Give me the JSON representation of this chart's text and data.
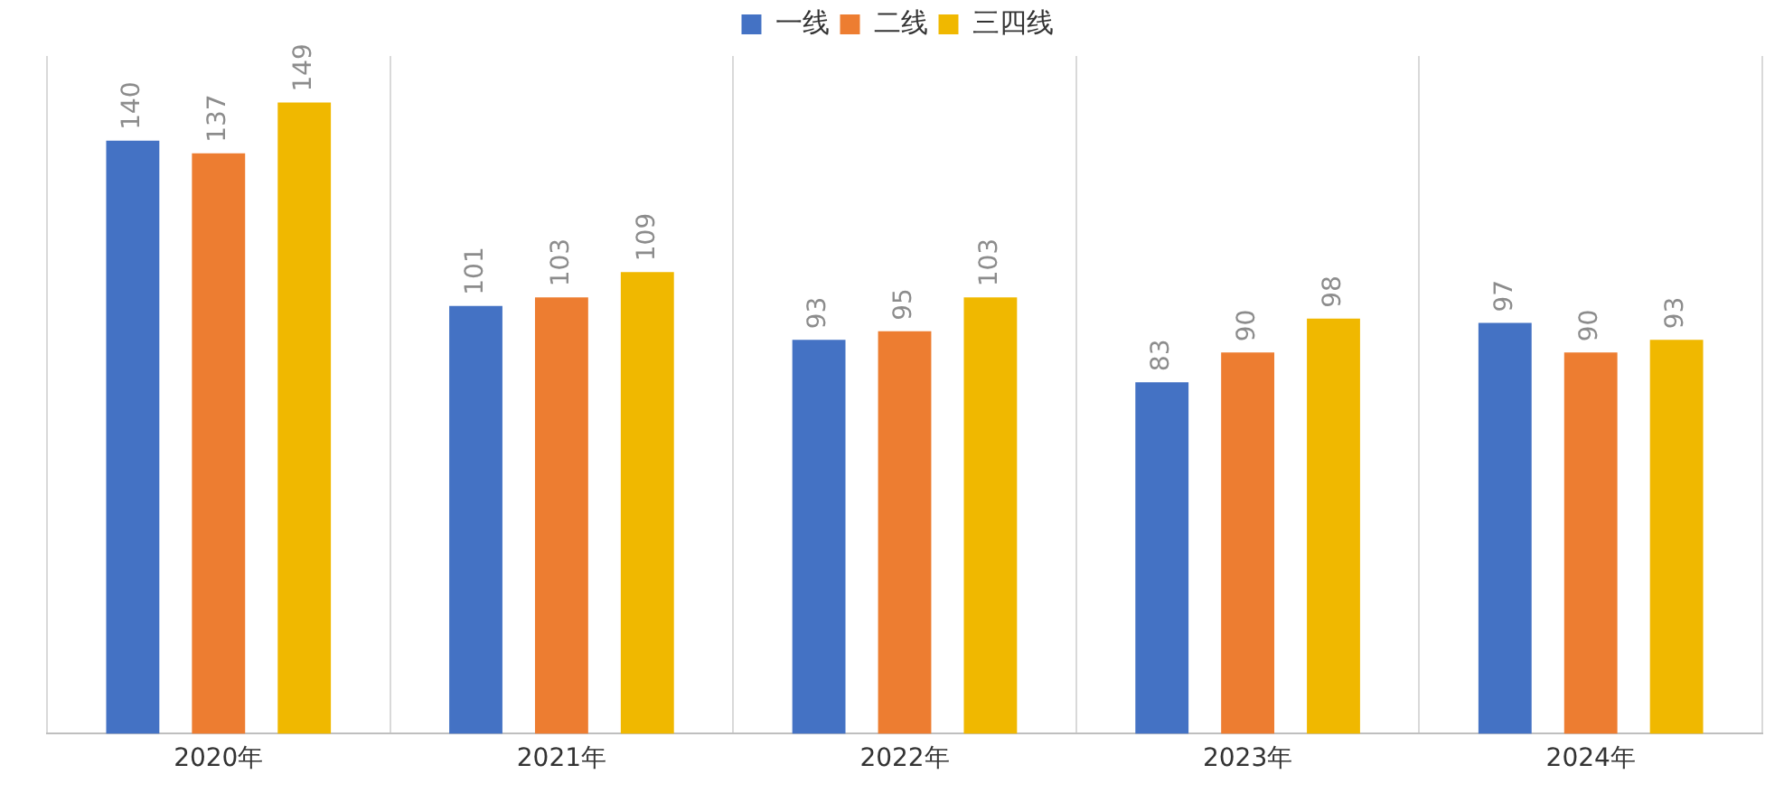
{
  "chart_data": {
    "type": "bar",
    "categories": [
      "2020年",
      "2021年",
      "2022年",
      "2023年",
      "2024年"
    ],
    "series": [
      {
        "name": "一线",
        "color": "#4472c4",
        "values": [
          140,
          101,
          93,
          83,
          97
        ]
      },
      {
        "name": "二线",
        "color": "#ed7d31",
        "values": [
          137,
          103,
          95,
          90,
          90
        ]
      },
      {
        "name": "三四线",
        "color": "#f0b800",
        "values": [
          149,
          109,
          103,
          98,
          93
        ]
      }
    ],
    "data_labels": true,
    "grid": "x",
    "legend": "top",
    "relative": false
  }
}
